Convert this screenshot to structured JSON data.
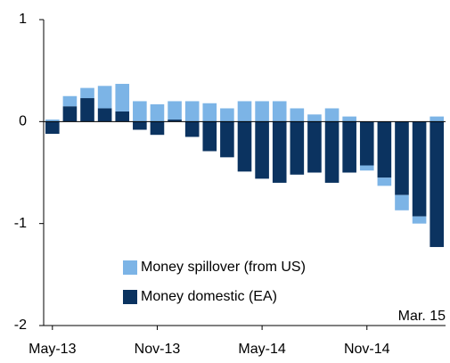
{
  "chart_data": {
    "type": "bar",
    "stacked": true,
    "categories": [
      "May-13",
      null,
      null,
      null,
      null,
      null,
      "Nov-13",
      null,
      null,
      null,
      null,
      null,
      "May-14",
      null,
      null,
      null,
      null,
      null,
      "Nov-14",
      null,
      null,
      null,
      null
    ],
    "series": [
      {
        "name": "Money spillover (from US)",
        "color": "#7cb4e6",
        "values": [
          0.02,
          0.1,
          0.1,
          0.22,
          0.27,
          0.2,
          0.17,
          0.18,
          0.2,
          0.18,
          0.13,
          0.2,
          0.2,
          0.2,
          0.13,
          0.07,
          0.13,
          0.05,
          -0.05,
          -0.08,
          -0.15,
          -0.07,
          0.05
        ]
      },
      {
        "name": "Money domestic (EA)",
        "color": "#0b3360",
        "values": [
          -0.12,
          0.15,
          0.23,
          0.13,
          0.1,
          -0.08,
          -0.13,
          0.02,
          -0.15,
          -0.29,
          -0.35,
          -0.49,
          -0.56,
          -0.6,
          -0.52,
          -0.5,
          -0.6,
          -0.5,
          -0.43,
          -0.55,
          -0.72,
          -0.93,
          -1.23
        ]
      }
    ],
    "ylim": [
      -2,
      1
    ],
    "yticks": [
      -2,
      -1,
      0,
      1
    ],
    "annotation": "Mar. 15"
  }
}
